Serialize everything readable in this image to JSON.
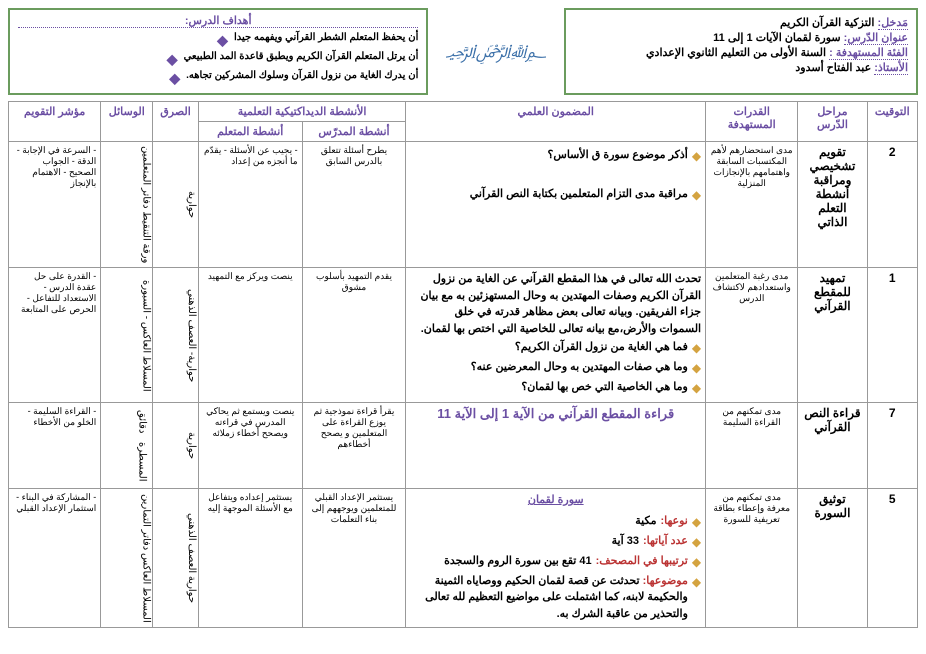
{
  "info": {
    "entry_label": "مَدخل:",
    "entry_val": "التزكية القرآن الكريم",
    "lesson_label": "عنوان الدّرس:",
    "lesson_val": "سورة لقمان  الآيات 1 إلى 11",
    "target_label": "الفئة المستهدفة :",
    "target_val": "السنة الأولى من التعليم الثانوي الإعدادي",
    "teacher_label": "الأستاذ:",
    "teacher_val": "عبد الفتاح أسدود"
  },
  "objectives": {
    "title": "أهداف الدرس:",
    "items": [
      "أن يحفظ المتعلم الشطر القرآني ويفهمه جيدا",
      "أن يرتل المتعلم القرآن الكريم ويطبق قاعدة المد الطبيعي",
      "أن يدرك الغاية من نزول القرآن وسلوك المشركين تجاهه."
    ]
  },
  "headers": {
    "timing": "التوقيت",
    "stage": "مراحل الدّرس",
    "skills": "القدرات المستهدفة",
    "content": "المضمون العلمي",
    "activities": "الأنشطة الديداكتيكية التعلمية",
    "teacher_act": "أنشطة المدرّس",
    "learner_act": "أنشطة المتعلم",
    "method": "الصرق",
    "means": "الوسائل",
    "indicator": "مؤشر التقويم"
  },
  "row1": {
    "timing": "2",
    "stage": "تقويم تشخيصي ومراقبة أنشطة التعلم الذاتي",
    "skills": "مدى استحضارهم لأهم المكتسبات السابقة  واهتمامهم بالإنجازات المنزلية",
    "content1": "أذكر موضوع سورة ق الأساس؟",
    "content2": "مراقبة مدى التزام المتعلمين بكتابة النص القرآني",
    "teacher": "يطرح أسئلة تتعلق بالدرس السابق",
    "learner": "- يجيب عن الأسئلة\n- يقدّم ما أنجزه من إعداد",
    "method": "حوارية",
    "means": "ورقة التنقيط دفاتر المتعلمين",
    "ind": "- السرعة في الإجابة\n- الدقة\n- الجواب الصحيح\n- الاهتمام بالإنجاز"
  },
  "row2": {
    "timing": "1",
    "stage": "تمهيد للمقطع القرآني",
    "skills": "مدى رغبة المتعلمين واستعدادهم لاكتشاف الدرس",
    "content_intro": "تحدث الله تعالى في هذا المقطع القرآني عن الغاية من نزول القرآن الكريم وصفات المهتدين به وحال المستهزئين به مع بيان جزاء الفريقين. وبيانه تعالى بعض مظاهر قدرته في خلق السموات والأرض،مع بيانه تعالى للخاصية التي اختص بها لقمان.",
    "q1": "فما هي الغاية من نزول القرآن الكريم؟",
    "q2": "وما هي صفات المهتدين به وحال المعرضين عنه؟",
    "q3": "وما هي الخاصية التي خص بها لقمان؟",
    "teacher": "يقدم التمهيد بأسلوب مشوق",
    "learner": "ينصت ويركز مع التمهيد",
    "method": "حوارية- العصف الذهني",
    "means": "المسلاط العاكس - السبورة",
    "ind": "- القدرة على حل عقدة الدرس\n- الاستعداد للتفاعل\n- الحرص على المتابعة"
  },
  "row3": {
    "timing": "7",
    "stage": "قراءة النص القرآني",
    "skills": "مدى تمكنهم من القراءة السليمة",
    "content_title": "قراءة المقطع القرآني من الآية 1 إلى الآية 11",
    "teacher": "يقرأ قراءة نموذجية ثم يوزع القراءة على المتعلمين و يصحح أخطاءهم",
    "learner": "ينصت ويستمع ثم يحاكي المدرس في قراءته ويصحح أخطاء زملائه",
    "method": "حوارية",
    "means1": "دقائق",
    "means2": "المسطرة",
    "ind": "- القراءة السليمة\n- الخلو من الأخطاء"
  },
  "row4": {
    "timing": "5",
    "stage": "توثيق السورة",
    "skills": "مدى تمكنهم من معرفة وإعطاء بطاقة تعريفية للسورة",
    "sura_name": "سورة لقمان",
    "type_lbl": "نوعها:",
    "type_val": "مكية",
    "verses_lbl": "عدد آياتها:",
    "verses_val": "33 آية",
    "order_lbl": "ترتيبها في المصحف:",
    "order_val": "41 تقع بين سورة الروم والسجدة",
    "topic_lbl": "موضوعها:",
    "topic_val": "تحدثت عن قصة لقمان الحكيم ووصاياه الثمينة والحكيمة لابنه، كما اشتملت على مواضيع التعظيم لله تعالى والتحذير من عاقبة الشرك به.",
    "teacher": "يستثمر الإعداد القبلي للمتعلمين ويوجههم إلى بناء التعلمات",
    "learner": "يستثمر إعداده ويتفاعل مع الأسئلة الموجهة إليه",
    "method": "حوارية العصف الذهني",
    "means": "المسلاط العاكس دفاتر التمارين",
    "ind": "- المشاركة في البناء\n- استثمار الإعداد القبلي"
  }
}
